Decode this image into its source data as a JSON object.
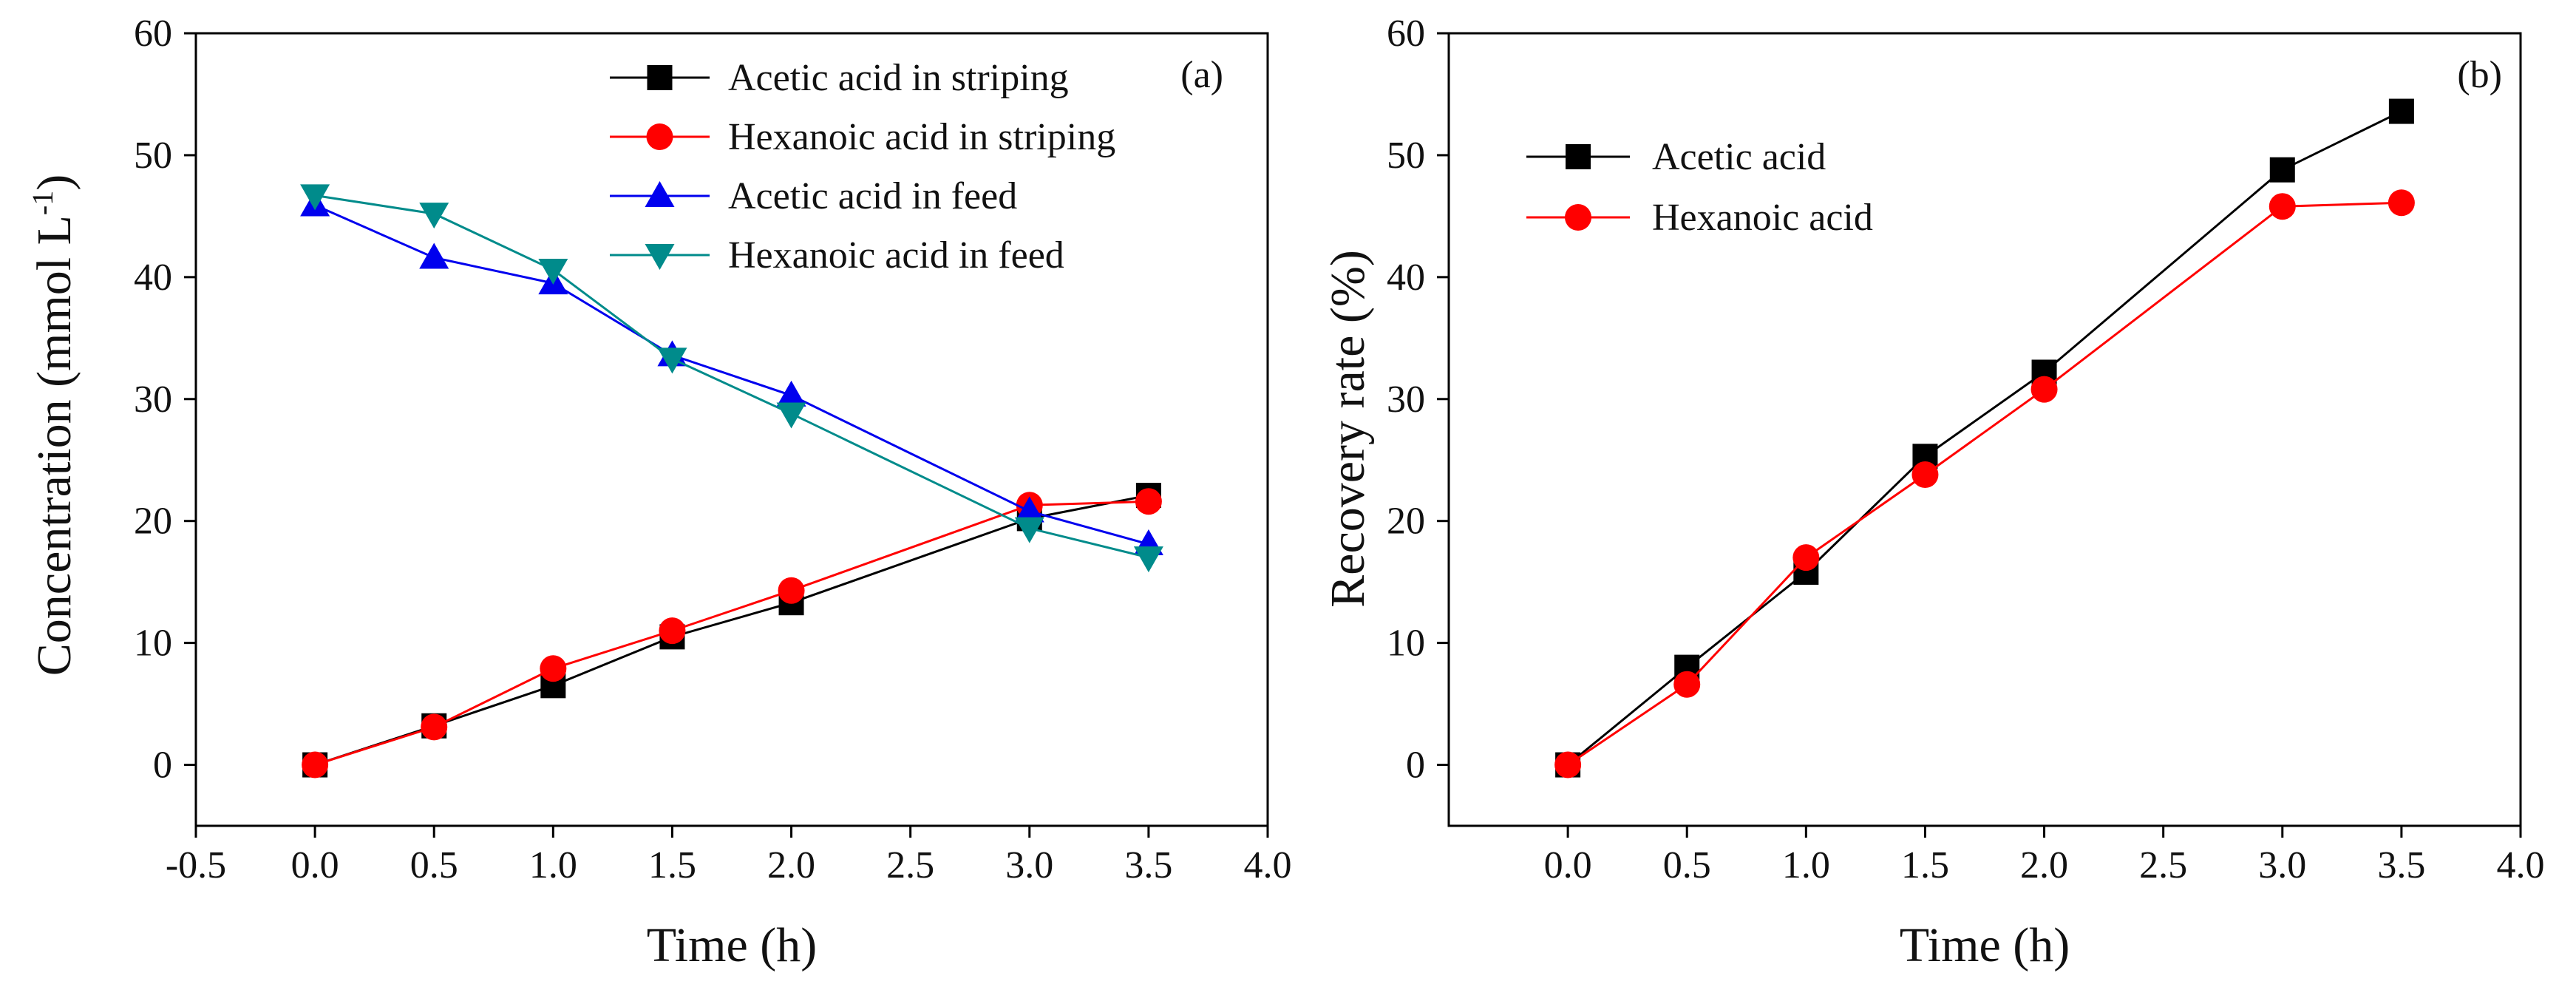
{
  "chart_data": [
    {
      "type": "line",
      "panel_label": "(a)",
      "xlabel": "Time (h)",
      "ylabel": "Concentration (mmol L",
      "ylabel_superscript": "-1",
      "ylabel_suffix": ")",
      "xlim": [
        -0.5,
        4.0
      ],
      "ylim": [
        -5,
        60
      ],
      "xticks": [
        -0.5,
        0.0,
        0.5,
        1.0,
        1.5,
        2.0,
        2.5,
        3.0,
        3.5,
        4.0
      ],
      "xtick_labels": [
        "-0.5",
        "0.0",
        "0.5",
        "1.0",
        "1.5",
        "2.0",
        "2.5",
        "3.0",
        "3.5",
        "4.0"
      ],
      "yticks": [
        0,
        10,
        20,
        30,
        40,
        50,
        60
      ],
      "ytick_labels": [
        "0",
        "10",
        "20",
        "30",
        "40",
        "50",
        "60"
      ],
      "legend_position": "top-right",
      "x": [
        0.0,
        0.5,
        1.0,
        1.5,
        2.0,
        3.0,
        3.5
      ],
      "series": [
        {
          "name": "Acetic acid in striping",
          "color": "#000000",
          "marker": "square",
          "values": [
            0.0,
            3.2,
            6.5,
            10.5,
            13.3,
            20.2,
            22.1
          ]
        },
        {
          "name": "Hexanoic acid in striping",
          "color": "#ff0000",
          "marker": "circle",
          "values": [
            0.0,
            3.1,
            7.9,
            11.0,
            14.3,
            21.3,
            21.6
          ]
        },
        {
          "name": "Acetic acid in feed",
          "color": "#0000ee",
          "marker": "triangle-up",
          "values": [
            45.9,
            41.6,
            39.5,
            33.6,
            30.3,
            20.8,
            18.1
          ]
        },
        {
          "name": "Hexanoic acid in feed",
          "color": "#008b8b",
          "marker": "triangle-down",
          "values": [
            46.7,
            45.2,
            40.6,
            33.3,
            28.8,
            19.4,
            17.0
          ]
        }
      ]
    },
    {
      "type": "line",
      "panel_label": "(b)",
      "xlabel": "Time (h)",
      "ylabel": "Recovery rate (%)",
      "xlim": [
        -0.5,
        4.0
      ],
      "ylim": [
        -5,
        60
      ],
      "xticks": [
        0.0,
        0.5,
        1.0,
        1.5,
        2.0,
        2.5,
        3.0,
        3.5,
        4.0
      ],
      "xtick_labels": [
        "0.0",
        "0.5",
        "1.0",
        "1.5",
        "2.0",
        "2.5",
        "3.0",
        "3.5",
        "4.0"
      ],
      "yticks": [
        0,
        10,
        20,
        30,
        40,
        50,
        60
      ],
      "ytick_labels": [
        "0",
        "10",
        "20",
        "30",
        "40",
        "50",
        "60"
      ],
      "legend_position": "top-left",
      "x": [
        0.0,
        0.5,
        1.0,
        1.5,
        2.0,
        3.0,
        3.5
      ],
      "series": [
        {
          "name": "Acetic acid",
          "color": "#000000",
          "marker": "square",
          "values": [
            0.0,
            8.0,
            15.8,
            25.3,
            32.2,
            48.8,
            53.6
          ]
        },
        {
          "name": "Hexanoic acid",
          "color": "#ff0000",
          "marker": "circle",
          "values": [
            0.0,
            6.6,
            17.0,
            23.8,
            30.8,
            45.8,
            46.1
          ]
        }
      ]
    }
  ]
}
